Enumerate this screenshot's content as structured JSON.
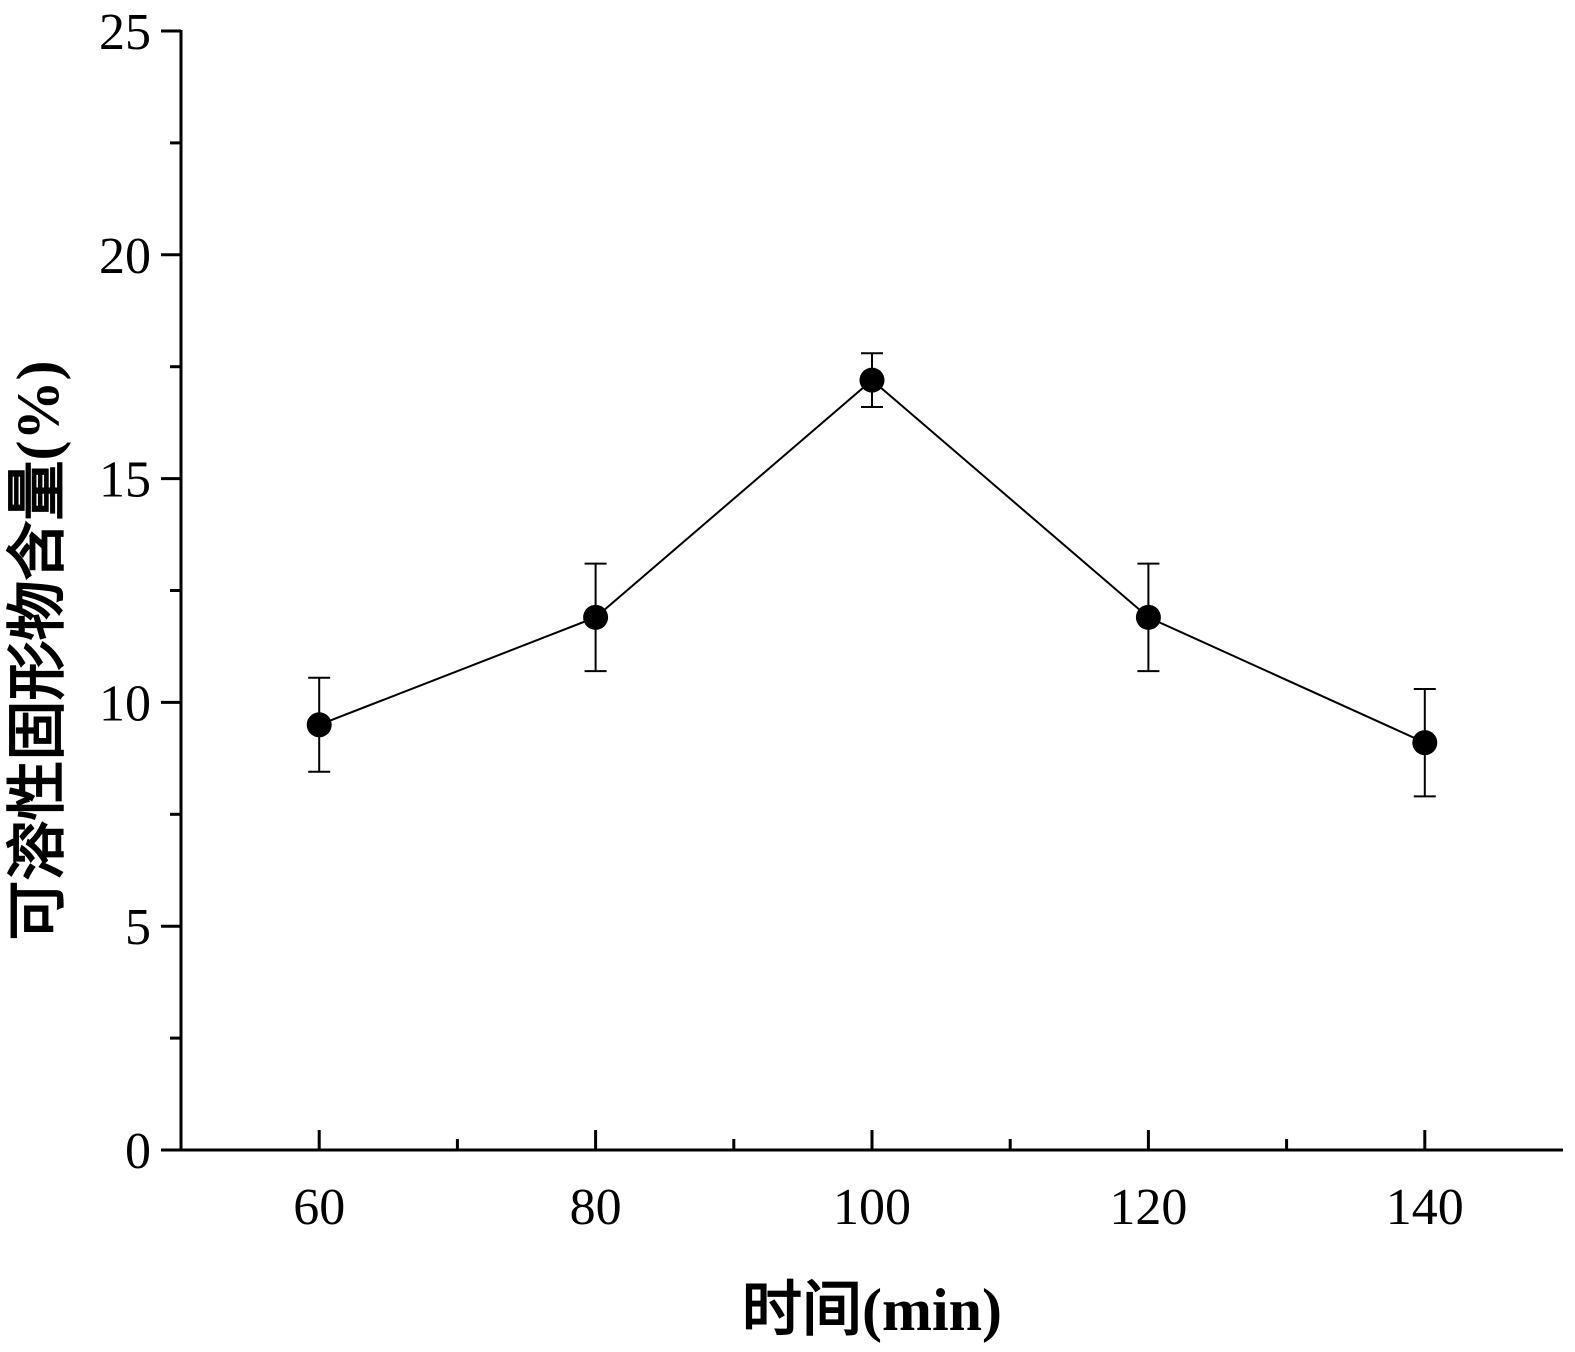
{
  "chart_data": {
    "type": "scatter",
    "connected": true,
    "x": [
      60,
      80,
      100,
      120,
      140
    ],
    "series": [
      {
        "values": [
          9.5,
          11.9,
          17.2,
          11.9,
          9.1
        ],
        "error": [
          1.05,
          1.2,
          0.6,
          1.2,
          1.2
        ],
        "color": "#000000"
      }
    ],
    "xlabel": "时间(min)",
    "ylabel": "可溶性固形物含量(%)",
    "xlim": [
      50,
      150
    ],
    "ylim": [
      0,
      25
    ],
    "x_major_ticks": [
      60,
      80,
      100,
      120,
      140
    ],
    "x_tick_labels": [
      "60",
      "80",
      "100",
      "120",
      "140"
    ],
    "x_minor_ticks": [
      70,
      90,
      110,
      130
    ],
    "y_major_ticks": [
      0,
      5,
      10,
      15,
      20,
      25
    ],
    "y_tick_labels": [
      "0",
      "5",
      "10",
      "15",
      "20",
      "25"
    ],
    "y_minor_ticks": [
      2.5,
      7.5,
      12.5,
      17.5,
      22.5
    ],
    "grid": false,
    "legend": "none",
    "marker": "filled-circle"
  }
}
